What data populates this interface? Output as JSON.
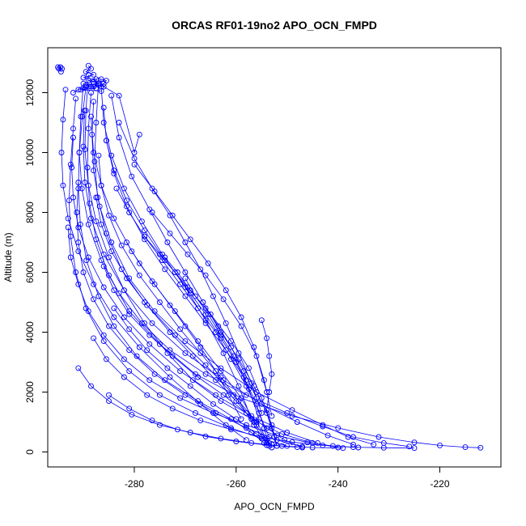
{
  "chart_data": {
    "type": "scatter",
    "title": "ORCAS RF01-19no2 APO_OCN_FMPD",
    "xlabel": "APO_OCN_FMPD",
    "ylabel": "Altitude (m)",
    "xlim": [
      -297,
      -208
    ],
    "ylim": [
      -500,
      13500
    ],
    "xticks": [
      "-280",
      "-260",
      "-240",
      "-220"
    ],
    "xtick_values": [
      -280,
      -260,
      -240,
      -220
    ],
    "yticks": [
      "0",
      "2000",
      "4000",
      "6000",
      "8000",
      "10000",
      "12000"
    ],
    "ytick_values": [
      0,
      2000,
      4000,
      6000,
      8000,
      10000,
      12000
    ],
    "grid": false,
    "legend": "none",
    "marker": "open-circle",
    "connect_points": true,
    "color": "#0000ff",
    "series": [
      {
        "x": [
          -289.5,
          -290.2,
          -290.8,
          -291.0,
          -290.6,
          -289.4,
          -287.0,
          -284.0,
          -279.5,
          -274.0,
          -267.5,
          -261.0,
          -257.0,
          -254.5,
          -253.0
        ],
        "y": [
          12200,
          11200,
          10000,
          8800,
          7600,
          6400,
          5200,
          4200,
          3200,
          2400,
          1700,
          1100,
          650,
          300,
          150
        ]
      },
      {
        "x": [
          -288.5,
          -289.0,
          -289.2,
          -288.8,
          -287.5,
          -285.0,
          -281.0,
          -275.0,
          -268.0,
          -259.0,
          -249.0,
          -240.0,
          -232.0,
          -225.0,
          -220.0,
          -215.0,
          -212.0
        ],
        "y": [
          12000,
          10800,
          9500,
          8300,
          7100,
          5900,
          4700,
          3600,
          2600,
          1800,
          1200,
          800,
          500,
          320,
          220,
          160,
          140
        ]
      },
      {
        "x": [
          -287.0,
          -287.5,
          -287.8,
          -287.2,
          -285.5,
          -282.5,
          -278.0,
          -272.0,
          -266.0,
          -260.5,
          -256.0,
          -253.5
        ],
        "y": [
          12400,
          11000,
          9700,
          8500,
          7300,
          6100,
          5000,
          3900,
          2900,
          1900,
          1000,
          300
        ]
      },
      {
        "x": [
          -291.5,
          -292.0,
          -292.5,
          -292.8,
          -292.5,
          -291.5,
          -289.5,
          -286.0,
          -281.0,
          -275.0,
          -268.0,
          -261.0,
          -255.0,
          -250.0
        ],
        "y": [
          11800,
          10800,
          9600,
          8400,
          7200,
          6000,
          4800,
          3700,
          2700,
          1900,
          1300,
          800,
          450,
          200
        ]
      },
      {
        "x": [
          -286.0,
          -285.5,
          -284.0,
          -281.5,
          -278.0,
          -274.0,
          -270.0,
          -266.0,
          -262.0,
          -258.5,
          -256.0,
          -254.5,
          -253.5
        ],
        "y": [
          11500,
          10400,
          9300,
          8200,
          7100,
          6100,
          5200,
          4300,
          3400,
          2500,
          1600,
          800,
          200
        ]
      },
      {
        "x": [
          -284.5,
          -283.0,
          -280.5,
          -277.0,
          -273.5,
          -270.0,
          -266.5,
          -263.0,
          -259.5,
          -256.5,
          -254.0,
          -252.5
        ],
        "y": [
          11900,
          10500,
          9200,
          8100,
          7000,
          6000,
          5000,
          4000,
          3100,
          2200,
          1300,
          500
        ]
      },
      {
        "x": [
          -289.0,
          -289.5,
          -289.7,
          -289.0,
          -287.5,
          -285.0,
          -282.0,
          -278.0,
          -273.5,
          -268.5,
          -263.0,
          -257.0,
          -251.0,
          -245.0,
          -240.0
        ],
        "y": [
          12600,
          11400,
          10100,
          8900,
          7700,
          6500,
          5400,
          4300,
          3300,
          2400,
          1700,
          1100,
          600,
          300,
          150
        ]
      },
      {
        "x": [
          -293.5,
          -294.0,
          -294.3,
          -294.0,
          -293.0,
          -291.0,
          -288.0,
          -284.0,
          -279.0,
          -273.0,
          -267.0,
          -262.0,
          -258.0
        ],
        "y": [
          12100,
          11100,
          10000,
          8900,
          7800,
          6700,
          5600,
          4500,
          3500,
          2500,
          1600,
          900,
          400
        ]
      },
      {
        "x": [
          -283.0,
          -280.0,
          -276.5,
          -273.0,
          -270.0,
          -267.0,
          -264.5,
          -262.0,
          -259.5,
          -257.0,
          -255.0
        ],
        "y": [
          11000,
          9800,
          8800,
          7900,
          7000,
          6100,
          5200,
          4300,
          3300,
          2300,
          1300
        ]
      },
      {
        "x": [
          -288.0,
          -288.3,
          -288.0,
          -286.8,
          -284.5,
          -281.0,
          -276.0,
          -270.0,
          -263.0,
          -256.0,
          -249.0,
          -243.0,
          -238.0,
          -233.0
        ],
        "y": [
          11700,
          10600,
          9400,
          8200,
          7000,
          5800,
          4700,
          3700,
          2800,
          2000,
          1400,
          900,
          500,
          250
        ]
      },
      {
        "x": [
          -280.0,
          -276.0,
          -272.5,
          -269.0,
          -265.5,
          -262.0,
          -259.0,
          -256.5,
          -254.5,
          -253.0
        ],
        "y": [
          9600,
          8700,
          7900,
          7100,
          6300,
          5400,
          4500,
          3500,
          2400,
          1200
        ]
      },
      {
        "x": [
          -290.0,
          -290.5,
          -290.8,
          -290.3,
          -289.0,
          -286.5,
          -283.0,
          -278.5,
          -273.0,
          -266.0,
          -258.0,
          -250.0,
          -243.0,
          -237.0,
          -231.0,
          -226.0
        ],
        "y": [
          12300,
          11200,
          10000,
          8800,
          7600,
          6400,
          5300,
          4300,
          3400,
          2600,
          1900,
          1300,
          850,
          500,
          300,
          180
        ]
      },
      {
        "x": [
          -286.5,
          -286.0,
          -284.5,
          -282.0,
          -278.5,
          -274.5,
          -270.0,
          -266.0,
          -262.5,
          -259.5,
          -257.0
        ],
        "y": [
          12200,
          11000,
          9900,
          8800,
          7700,
          6600,
          5500,
          4400,
          3300,
          2200,
          1100
        ]
      },
      {
        "x": [
          -276.5,
          -273.0,
          -269.5,
          -266.0,
          -262.5,
          -259.0,
          -256.0,
          -254.0
        ],
        "y": [
          8000,
          7300,
          6600,
          5900,
          5100,
          4200,
          3200,
          2000
        ]
      },
      {
        "x": [
          -289.8,
          -290.0,
          -289.7,
          -288.5,
          -286.0,
          -282.0,
          -276.5,
          -270.0,
          -262.5,
          -255.0,
          -248.0,
          -242.0,
          -237.0
        ],
        "y": [
          11400,
          10200,
          9000,
          7800,
          6600,
          5400,
          4300,
          3300,
          2400,
          1600,
          1000,
          550,
          250
        ]
      },
      {
        "x": [
          -285.5,
          -284.0,
          -281.5,
          -278.0,
          -274.0,
          -269.5,
          -265.0,
          -261.0,
          -257.5,
          -255.0,
          -253.0,
          -252.0
        ],
        "y": [
          10400,
          9400,
          8400,
          7400,
          6400,
          5500,
          4600,
          3700,
          2800,
          1800,
          900,
          200
        ]
      },
      {
        "x": [
          -287.0,
          -286.5,
          -285.0,
          -282.5,
          -279.0,
          -275.0,
          -271.0,
          -267.0,
          -263.0,
          -259.5,
          -256.5,
          -254.0
        ],
        "y": [
          9900,
          8900,
          7900,
          6900,
          5900,
          5000,
          4100,
          3300,
          2500,
          1700,
          900,
          300
        ]
      },
      {
        "x": [
          -255.0,
          -254.0,
          -253.5,
          -253.0,
          -253.5,
          -254.0,
          -253.0,
          -252.0
        ],
        "y": [
          4400,
          3800,
          3200,
          2600,
          2000,
          1400,
          800,
          200
        ]
      },
      {
        "x": [
          -283.5,
          -281.0,
          -278.0,
          -274.5,
          -271.0,
          -267.5,
          -264.0,
          -261.0,
          -258.0,
          -255.5,
          -253.5
        ],
        "y": [
          8800,
          8000,
          7200,
          6400,
          5600,
          4800,
          4000,
          3100,
          2200,
          1300,
          500
        ]
      },
      {
        "x": [
          -292.0,
          -292.3,
          -292.0,
          -291.0,
          -289.0,
          -286.0,
          -282.0,
          -277.0,
          -271.0,
          -264.0,
          -257.0,
          -250.0,
          -244.0
        ],
        "y": [
          10500,
          9500,
          8500,
          7500,
          6500,
          5500,
          4500,
          3600,
          2700,
          1900,
          1200,
          650,
          300
        ]
      },
      {
        "x": [
          -288.5,
          -288.0,
          -286.5,
          -284.0,
          -280.5,
          -276.5,
          -272.0,
          -267.5,
          -263.0,
          -259.0,
          -256.0
        ],
        "y": [
          11200,
          10000,
          8900,
          7800,
          6700,
          5700,
          4700,
          3700,
          2700,
          1800,
          900
        ]
      },
      {
        "x": [
          -278.0,
          -275.0,
          -272.0,
          -269.0,
          -266.0,
          -263.0,
          -260.0,
          -257.5,
          -255.5
        ],
        "y": [
          7200,
          6600,
          6000,
          5300,
          4600,
          3800,
          3000,
          2100,
          1100
        ]
      },
      {
        "x": [
          -274.0,
          -271.5,
          -269.0,
          -266.0,
          -263.5,
          -261.0,
          -258.5,
          -256.0
        ],
        "y": [
          6500,
          6000,
          5400,
          4800,
          4200,
          3500,
          2700,
          1800
        ]
      },
      {
        "x": [
          -291.0,
          -291.3,
          -291.0,
          -290.0,
          -288.0,
          -285.0,
          -281.0,
          -276.0,
          -270.0,
          -264.0,
          -258.0,
          -252.0,
          -247.0
        ],
        "y": [
          9000,
          8000,
          7000,
          6000,
          5100,
          4200,
          3400,
          2600,
          1900,
          1300,
          800,
          400,
          180
        ]
      },
      {
        "x": [
          -287.5,
          -286.5,
          -284.5,
          -281.5,
          -277.5,
          -273.0,
          -268.5,
          -264.0,
          -260.0,
          -256.5,
          -254.0
        ],
        "y": [
          8500,
          7600,
          6700,
          5800,
          4900,
          4000,
          3200,
          2400,
          1700,
          1000,
          400
        ]
      },
      {
        "x": [
          -281.5,
          -279.0,
          -276.0,
          -273.0,
          -270.0,
          -267.0,
          -264.0,
          -261.5,
          -259.0
        ],
        "y": [
          7000,
          6300,
          5600,
          4900,
          4200,
          3500,
          2700,
          1900,
          1100
        ]
      },
      {
        "x": [
          -270.0,
          -268.0,
          -265.5,
          -263.0,
          -260.5,
          -258.0
        ],
        "y": [
          5800,
          5200,
          4600,
          3900,
          3200,
          2400
        ]
      },
      {
        "x": [
          -293.0,
          -292.5,
          -291.0,
          -289.0,
          -286.0,
          -282.0,
          -277.0,
          -271.0,
          -264.5,
          -258.0,
          -252.0,
          -246.0,
          -241.0,
          -236.0
        ],
        "y": [
          7500,
          6500,
          5600,
          4700,
          3900,
          3100,
          2400,
          1800,
          1300,
          900,
          550,
          320,
          200,
          150
        ]
      },
      {
        "x": [
          -286.0,
          -284.0,
          -281.0,
          -277.0,
          -272.5,
          -267.5,
          -262.5,
          -258.0,
          -254.0,
          -250.5,
          -247.0
        ],
        "y": [
          6200,
          5400,
          4600,
          3900,
          3200,
          2500,
          1900,
          1300,
          800,
          400,
          150
        ]
      },
      {
        "x": [
          -284.0,
          -281.0,
          -277.5,
          -273.5,
          -269.0,
          -264.5,
          -260.0,
          -256.0,
          -253.0
        ],
        "y": [
          4800,
          4100,
          3400,
          2800,
          2200,
          1600,
          1100,
          600,
          250
        ]
      },
      {
        "x": [
          -288.0,
          -285.5,
          -282.0,
          -277.5,
          -272.5,
          -267.0,
          -261.0,
          -255.0,
          -249.0,
          -243.0,
          -237.0,
          -231.0,
          -225.0
        ],
        "y": [
          3800,
          3100,
          2500,
          1900,
          1450,
          1050,
          750,
          500,
          330,
          220,
          160,
          140,
          130
        ]
      },
      {
        "x": [
          -291.0,
          -288.5,
          -285.0,
          -280.5,
          -275.0,
          -269.0,
          -263.0,
          -257.0,
          -251.0,
          -245.0,
          -239.0
        ],
        "y": [
          2800,
          2200,
          1700,
          1250,
          900,
          650,
          450,
          300,
          200,
          150,
          130
        ]
      },
      {
        "x": [
          -285.0,
          -281.0,
          -276.5,
          -271.5,
          -266.0,
          -260.0,
          -254.0,
          -248.0
        ],
        "y": [
          1900,
          1450,
          1050,
          750,
          520,
          350,
          230,
          160
        ]
      },
      {
        "x": [
          -289.0,
          -288.5,
          -289.5,
          -288.0,
          -290.0,
          -287.5,
          -289.0,
          -288.0,
          -287.0,
          -289.5,
          -288.5,
          -287.5,
          -290.5,
          -286.5
        ],
        "y": [
          12900,
          12800,
          12700,
          12600,
          12500,
          12450,
          12400,
          12350,
          12300,
          12250,
          12200,
          12150,
          12100,
          12050
        ]
      },
      {
        "x": [
          -294.5,
          -295.0,
          -294.2,
          -294.8,
          -294.4
        ],
        "y": [
          12850,
          12850,
          12800,
          12800,
          12700
        ]
      },
      {
        "x": [
          -292.0,
          -291.0,
          -290.0,
          -289.0,
          -288.0,
          -287.0,
          -286.0,
          -285.5,
          -286.5
        ],
        "y": [
          12000,
          12100,
          12150,
          12200,
          12200,
          12250,
          12300,
          12400,
          12450
        ]
      },
      {
        "x": [
          -288.0,
          -286.0,
          -283.0,
          -280.0,
          -279.0
        ],
        "y": [
          12300,
          12200,
          11900,
          10000,
          10600
        ]
      }
    ]
  }
}
